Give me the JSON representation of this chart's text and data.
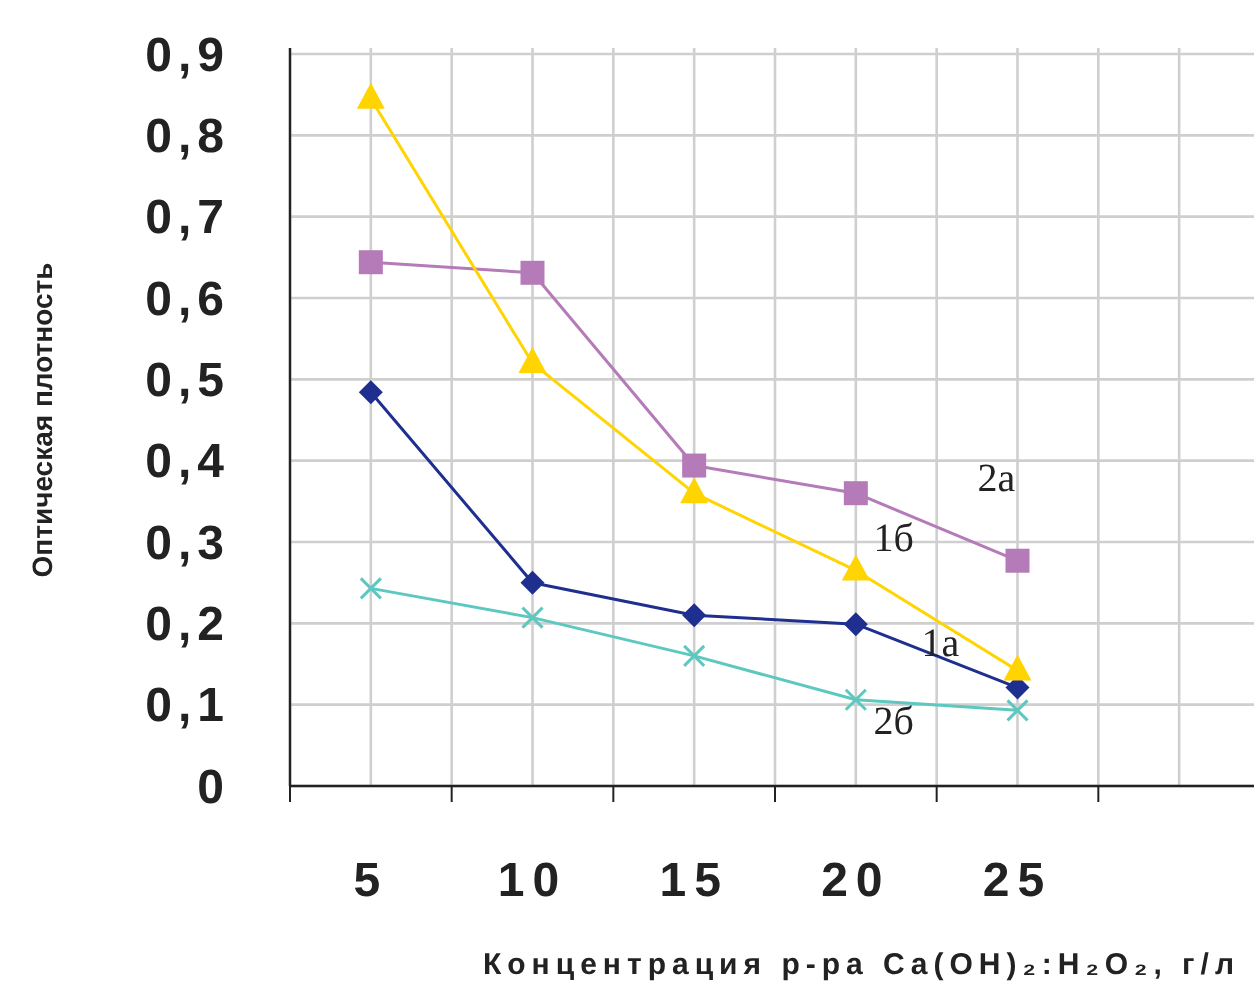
{
  "chart_data": {
    "type": "line",
    "xlabel": "Концентрация р-ра Ca(OH)₂:H₂O₂, г/л",
    "ylabel": "Оптическая плотность",
    "categories": [
      "5",
      "10",
      "15",
      "20",
      "25",
      null
    ],
    "ylim": [
      0,
      0.9
    ],
    "yticks": [
      {
        "value": 0,
        "label": "0"
      },
      {
        "value": 0.1,
        "label": "0,1"
      },
      {
        "value": 0.2,
        "label": "0,2"
      },
      {
        "value": 0.3,
        "label": "0,3"
      },
      {
        "value": 0.4,
        "label": "0,4"
      },
      {
        "value": 0.5,
        "label": "0,5"
      },
      {
        "value": 0.6,
        "label": "0,6"
      },
      {
        "value": 0.7,
        "label": "0,7"
      },
      {
        "value": 0.8,
        "label": "0,8"
      },
      {
        "value": 0.9,
        "label": "0,9"
      }
    ],
    "grid": true,
    "series": [
      {
        "name": "1а",
        "color": "#1f2f8f",
        "marker": "diamond",
        "values": [
          0.484,
          0.25,
          0.21,
          0.199,
          0.121,
          null
        ]
      },
      {
        "name": "2а",
        "color": "#b57ab8",
        "marker": "square",
        "values": [
          0.644,
          0.631,
          0.394,
          0.36,
          0.277,
          null
        ]
      },
      {
        "name": "1б",
        "color": "#ffd400",
        "marker": "triangle",
        "values": [
          0.845,
          0.52,
          0.36,
          0.265,
          0.142,
          null
        ]
      },
      {
        "name": "2б",
        "color": "#5cc8c0",
        "marker": "cross",
        "values": [
          0.243,
          0.207,
          0.16,
          0.106,
          0.093,
          null
        ]
      }
    ]
  }
}
